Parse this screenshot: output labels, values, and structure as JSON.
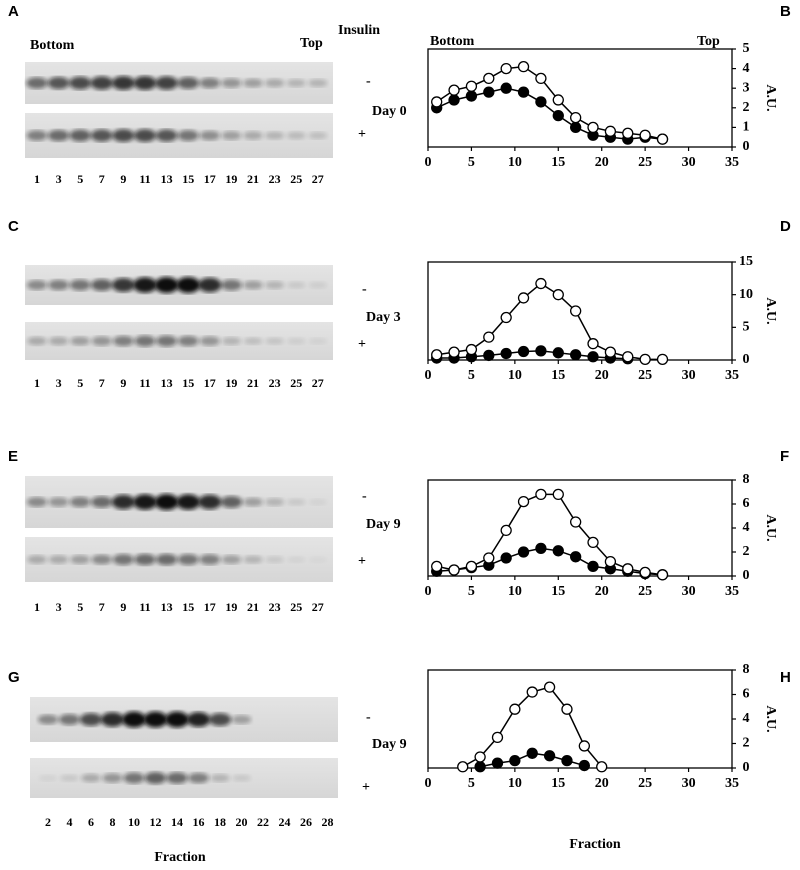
{
  "header": {
    "bottom": "Bottom",
    "top": "Top",
    "insulin": "Insulin"
  },
  "chart_header": {
    "bottom": "Bottom",
    "top": "Top"
  },
  "gel_xlabel": "Fraction",
  "gels": [
    {
      "letter": "A",
      "day": "Day 0",
      "minus": "-",
      "plus": "+",
      "lanes": [
        "1",
        "3",
        "5",
        "7",
        "9",
        "11",
        "13",
        "15",
        "17",
        "19",
        "21",
        "23",
        "25",
        "27"
      ]
    },
    {
      "letter": "C",
      "day": "Day 3",
      "minus": "-",
      "plus": "+",
      "lanes": [
        "1",
        "3",
        "5",
        "7",
        "9",
        "11",
        "13",
        "15",
        "17",
        "19",
        "21",
        "23",
        "25",
        "27"
      ]
    },
    {
      "letter": "E",
      "day": "Day 9",
      "minus": "-",
      "plus": "+",
      "lanes": [
        "1",
        "3",
        "5",
        "7",
        "9",
        "11",
        "13",
        "15",
        "17",
        "19",
        "21",
        "23",
        "25",
        "27"
      ]
    },
    {
      "letter": "G",
      "day": "Day 9",
      "minus": "-",
      "plus": "+",
      "lanes": [
        "2",
        "4",
        "6",
        "8",
        "10",
        "12",
        "14",
        "16",
        "18",
        "20",
        "22",
        "24",
        "26",
        "28"
      ]
    }
  ],
  "chart_data": [
    {
      "type": "line",
      "panel": "B",
      "ylabel": "A.U.",
      "xlim": [
        0,
        35
      ],
      "ylim": [
        0,
        5
      ],
      "xticks": [
        0,
        5,
        10,
        15,
        20,
        25,
        30,
        35
      ],
      "yticks": [
        0,
        1,
        2,
        3,
        4,
        5
      ],
      "x": [
        1,
        3,
        5,
        7,
        9,
        11,
        13,
        15,
        17,
        19,
        21,
        23,
        25,
        27
      ],
      "series": [
        {
          "marker": "filled",
          "color": "#000000",
          "values": [
            2.0,
            2.4,
            2.6,
            2.8,
            3.0,
            2.8,
            2.3,
            1.6,
            1.0,
            0.6,
            0.5,
            0.4,
            0.5,
            0.4
          ]
        },
        {
          "marker": "open",
          "color": "#000000",
          "values": [
            2.3,
            2.9,
            3.1,
            3.5,
            4.0,
            4.1,
            3.5,
            2.4,
            1.5,
            1.0,
            0.8,
            0.7,
            0.6,
            0.4
          ]
        }
      ]
    },
    {
      "type": "line",
      "panel": "D",
      "ylabel": "A.U.",
      "xlim": [
        0,
        35
      ],
      "ylim": [
        0,
        15
      ],
      "xticks": [
        0,
        5,
        10,
        15,
        20,
        25,
        30,
        35
      ],
      "yticks": [
        0,
        5,
        10,
        15
      ],
      "x": [
        1,
        3,
        5,
        7,
        9,
        11,
        13,
        15,
        17,
        19,
        21,
        23,
        25,
        27
      ],
      "series": [
        {
          "marker": "filled",
          "color": "#000000",
          "values": [
            0.3,
            0.3,
            0.5,
            0.7,
            1.0,
            1.3,
            1.4,
            1.1,
            0.8,
            0.5,
            0.3,
            0.2,
            null,
            null
          ]
        },
        {
          "marker": "open",
          "color": "#000000",
          "values": [
            0.8,
            1.2,
            1.6,
            3.5,
            6.5,
            9.5,
            11.7,
            10,
            7.5,
            2.5,
            1.2,
            0.5,
            0.1,
            0.1
          ]
        }
      ]
    },
    {
      "type": "line",
      "panel": "F",
      "ylabel": "A.U.",
      "xlim": [
        0,
        35
      ],
      "ylim": [
        0,
        8
      ],
      "xticks": [
        0,
        5,
        10,
        15,
        20,
        25,
        30,
        35
      ],
      "yticks": [
        0,
        2,
        4,
        6,
        8
      ],
      "x": [
        1,
        3,
        5,
        7,
        9,
        11,
        13,
        15,
        17,
        19,
        21,
        23,
        25,
        27
      ],
      "series": [
        {
          "marker": "filled",
          "color": "#000000",
          "values": [
            0.4,
            0.5,
            0.7,
            0.9,
            1.5,
            2.0,
            2.3,
            2.1,
            1.6,
            0.8,
            0.6,
            0.4,
            0.2,
            0.1
          ]
        },
        {
          "marker": "open",
          "color": "#000000",
          "values": [
            0.8,
            0.5,
            0.8,
            1.5,
            3.8,
            6.2,
            6.8,
            6.8,
            4.5,
            2.8,
            1.2,
            0.6,
            0.3,
            0.1
          ]
        }
      ]
    },
    {
      "type": "line",
      "panel": "H",
      "ylabel": "A.U.",
      "xlabel": "Fraction",
      "xlim": [
        0,
        35
      ],
      "ylim": [
        0,
        8
      ],
      "xticks": [
        0,
        5,
        10,
        15,
        20,
        25,
        30,
        35
      ],
      "yticks": [
        0,
        2,
        4,
        6,
        8
      ],
      "x": [
        4,
        6,
        8,
        10,
        12,
        14,
        16,
        18,
        20
      ],
      "series": [
        {
          "marker": "filled",
          "color": "#000000",
          "values": [
            null,
            0.1,
            0.4,
            0.6,
            1.2,
            1.0,
            0.6,
            0.2,
            null
          ]
        },
        {
          "marker": "open",
          "color": "#000000",
          "values": [
            0.1,
            0.9,
            2.5,
            4.8,
            6.2,
            6.6,
            4.8,
            1.8,
            0.1
          ]
        }
      ]
    }
  ]
}
